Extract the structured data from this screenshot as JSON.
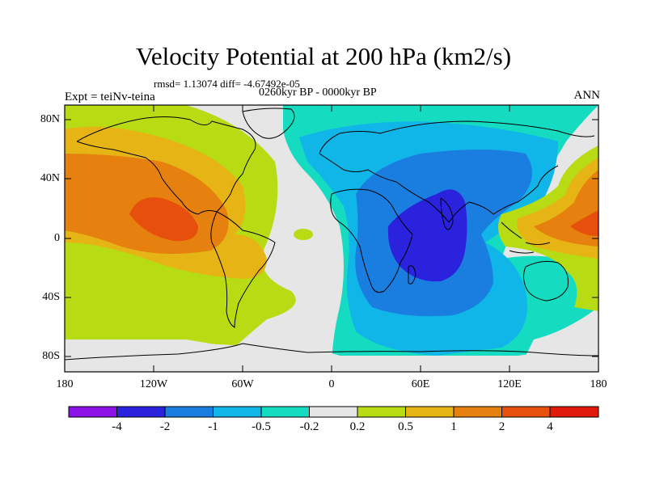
{
  "title": "Velocity Potential at 200 hPa (km2/s)",
  "stats": "rmsd= 1.13074 diff= -4.67492e-05",
  "period": "0260kyr BP - 0000kyr BP",
  "experiment": "Expt = teiNv-teina",
  "season": "ANN",
  "lat_labels": [
    "80N",
    "40N",
    "0",
    "40S",
    "80S"
  ],
  "lon_labels": [
    "180",
    "120W",
    "60W",
    "0",
    "60E",
    "120E",
    "180"
  ],
  "colorbar": {
    "labels": [
      "-4",
      "-2",
      "-1",
      "-0.5",
      "-0.2",
      "0.2",
      "0.5",
      "1",
      "2",
      "4"
    ],
    "colors": [
      "#8a12e6",
      "#2a22dc",
      "#1a7ee0",
      "#11b6e8",
      "#15dcc0",
      "#e6e6e6",
      "#b7dc14",
      "#e6b414",
      "#e6800e",
      "#e6500c",
      "#e01a0a"
    ]
  },
  "map_colors": {
    "neutral": "#e6e6e6",
    "pos_02": "#b7dc14",
    "pos_05": "#e6b414",
    "pos_1": "#e6800e",
    "pos_2": "#e6500c",
    "neg_02": "#15dcc0",
    "neg_05": "#11b6e8",
    "neg_1": "#1a7ee0",
    "neg_2": "#2a22dc",
    "coast": "#000000"
  }
}
